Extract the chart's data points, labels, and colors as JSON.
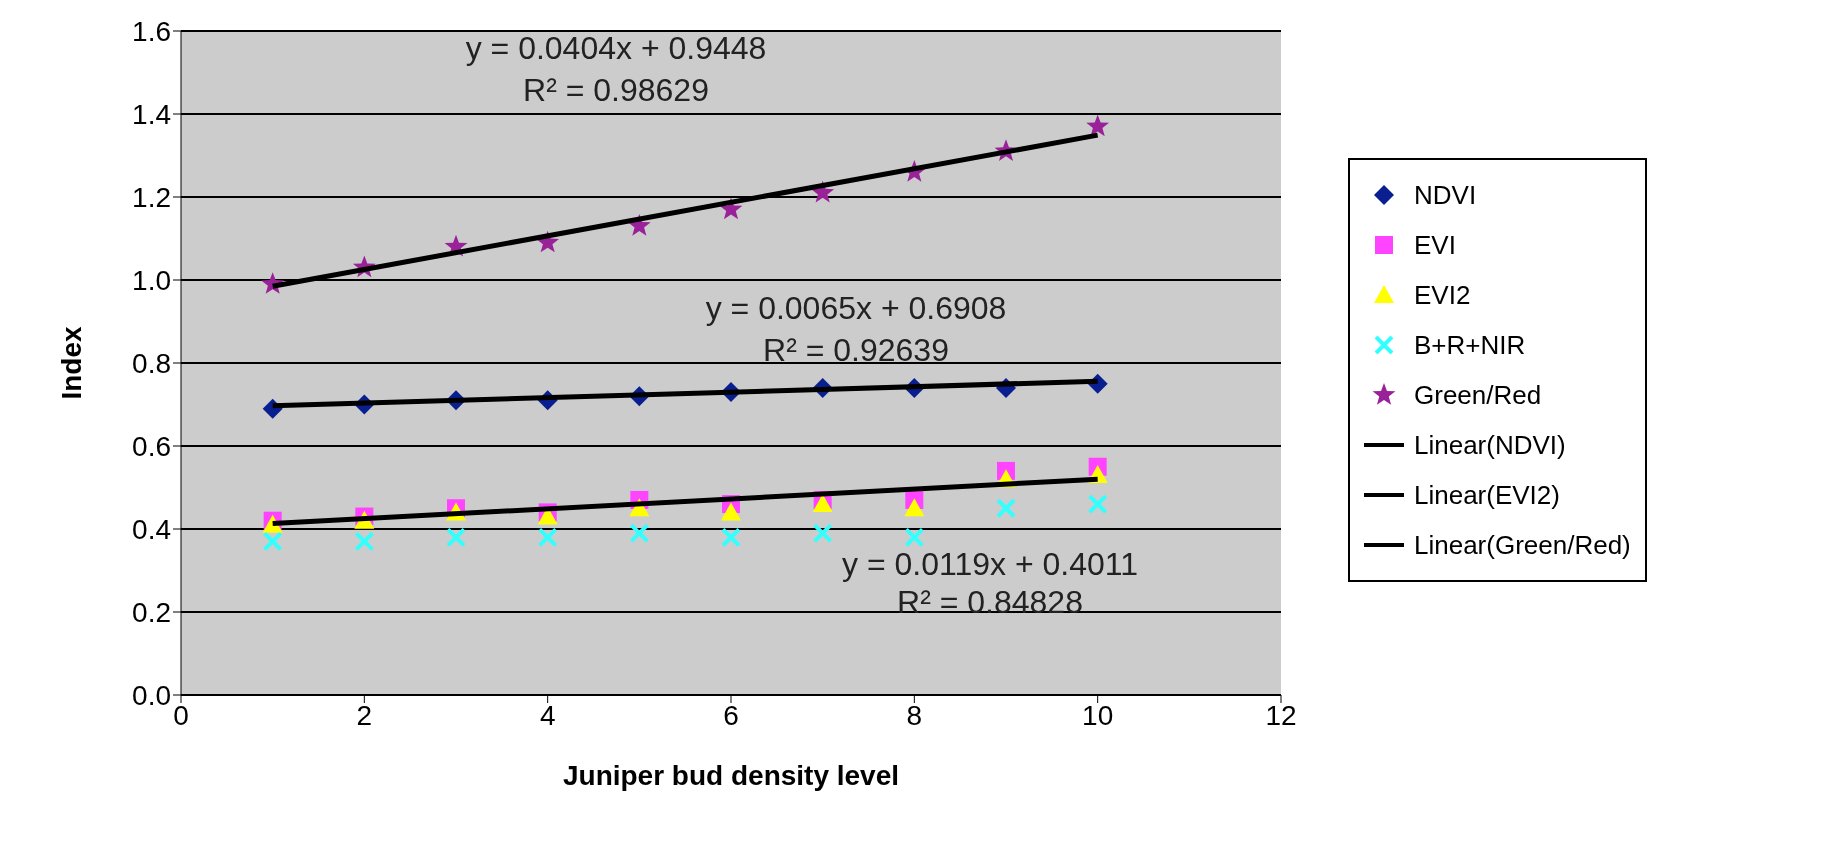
{
  "chart_data": {
    "type": "scatter",
    "xlabel": "Juniper bud density level",
    "ylabel": "Index",
    "xlim": [
      0,
      12
    ],
    "xticks": [
      0,
      2,
      4,
      6,
      8,
      10,
      12
    ],
    "ylim": [
      0,
      1.6
    ],
    "yticks": [
      {
        "value": 0,
        "label": "0.0"
      },
      {
        "value": 0.2,
        "label": "0.2"
      },
      {
        "value": 0.4,
        "label": "0.4"
      },
      {
        "value": 0.6,
        "label": "0.6"
      },
      {
        "value": 0.8,
        "label": "0.8"
      },
      {
        "value": 1,
        "label": "1.0"
      },
      {
        "value": 1.2,
        "label": "1.2"
      },
      {
        "value": 1.4,
        "label": "1.4"
      },
      {
        "value": 1.6,
        "label": "1.6"
      }
    ],
    "x": [
      1,
      2,
      3,
      4,
      5,
      6,
      7,
      8,
      9,
      10
    ],
    "series": [
      {
        "name": "NDVI",
        "color": "#0a1f8f",
        "marker": "diamond",
        "values": [
          0.69,
          0.7,
          0.71,
          0.71,
          0.72,
          0.73,
          0.74,
          0.74,
          0.74,
          0.75
        ]
      },
      {
        "name": "EVI",
        "color": "#ff44ff",
        "marker": "square",
        "values": [
          0.42,
          0.43,
          0.45,
          0.44,
          0.47,
          0.46,
          0.47,
          0.47,
          0.54,
          0.55
        ]
      },
      {
        "name": "EVI2",
        "color": "#ffff00",
        "marker": "triangle",
        "values": [
          0.41,
          0.42,
          0.44,
          0.43,
          0.45,
          0.44,
          0.46,
          0.45,
          0.52,
          0.53
        ]
      },
      {
        "name": "B+R+NIR",
        "color": "#33ffff",
        "marker": "cross",
        "values": [
          0.37,
          0.37,
          0.38,
          0.38,
          0.39,
          0.38,
          0.39,
          0.38,
          0.45,
          0.46
        ]
      },
      {
        "name": "Green/Red",
        "color": "#992299",
        "marker": "star",
        "values": [
          0.99,
          1.03,
          1.08,
          1.09,
          1.13,
          1.17,
          1.21,
          1.26,
          1.31,
          1.37
        ]
      },
      {
        "name": "Linear(NDVI)",
        "type": "line",
        "color": "#000000",
        "marker": "none",
        "values": [
          0.697,
          null,
          null,
          null,
          null,
          null,
          null,
          null,
          null,
          0.756
        ]
      },
      {
        "name": "Linear(EVI2)",
        "type": "line",
        "color": "#000000",
        "marker": "none",
        "values": [
          0.413,
          null,
          null,
          null,
          null,
          null,
          null,
          null,
          null,
          0.52
        ]
      },
      {
        "name": "Linear(Green/Red)",
        "type": "line",
        "color": "#000000",
        "marker": "none",
        "values": [
          0.985,
          null,
          null,
          null,
          null,
          null,
          null,
          null,
          null,
          1.349
        ]
      }
    ],
    "annotations": [
      "y = 0.0404x + 0.9448",
      "R² = 0.98629",
      "y = 0.0065x + 0.6908",
      "R² = 0.92639",
      "y = 0.0119x + 0.4011",
      "R² = 0.84828"
    ],
    "grid": "y",
    "legend": "right"
  }
}
